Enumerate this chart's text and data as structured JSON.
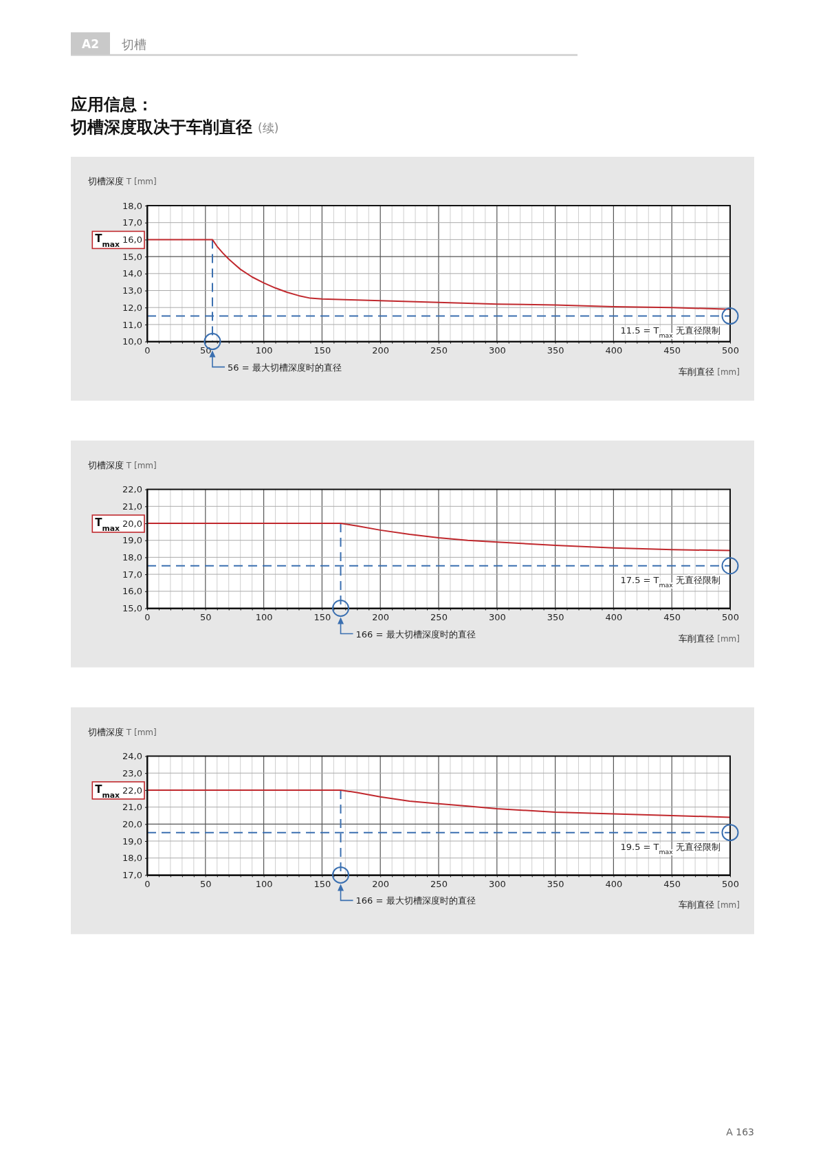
{
  "chart_data": [
    {
      "type": "line",
      "title": "应用信息：",
      "subtitle": "切槽深度取决于车削直径",
      "ylabel": "切槽深度 T [mm]",
      "xlabel": "车削直径 [mm]",
      "annotations": [
        "T$_{max}$",
        "A2",
        "切槽",
        "(续)"
      ],
      "x": [
        0,
        56,
        60,
        65,
        70,
        75,
        80,
        90,
        100,
        110,
        120,
        130,
        140,
        150,
        175,
        200,
        250,
        300,
        350,
        400,
        450,
        500
      ],
      "series": [
        {
          "color": "#c0282d",
          "values": [
            16,
            16,
            15.6,
            15.2,
            14.85,
            14.55,
            14.25,
            13.8,
            13.45,
            13.15,
            12.9,
            12.7,
            12.55,
            12.5,
            12.45,
            12.4,
            12.3,
            12.2,
            12.15,
            12.05,
            12.0,
            11.9
          ]
        }
      ],
      "xlim": [
        0,
        500
      ],
      "xticks": [
        0,
        {
          "value": 10,
          "label": null
        },
        {
          "value": 20,
          "label": null
        },
        {
          "value": 30,
          "label": null
        },
        {
          "value": 40,
          "label": null
        },
        50,
        {
          "value": 60,
          "label": null
        },
        {
          "value": 70,
          "label": null
        },
        {
          "value": 80,
          "label": null
        },
        {
          "value": 90,
          "label": null
        },
        100,
        {
          "value": 110,
          "label": null
        },
        {
          "value": 120,
          "label": null
        },
        {
          "value": 130,
          "label": null
        },
        {
          "value": 140,
          "label": null
        },
        150,
        {
          "value": 160,
          "label": null
        },
        {
          "value": 170,
          "label": null
        },
        {
          "value": 180,
          "label": null
        },
        {
          "value": 190,
          "label": null
        },
        200,
        {
          "value": 210,
          "label": null
        },
        {
          "value": 220,
          "label": null
        },
        {
          "value": 230,
          "label": null
        },
        {
          "value": 240,
          "label": null
        },
        250,
        {
          "value": 260,
          "label": null
        },
        {
          "value": 270,
          "label": null
        },
        {
          "value": 280,
          "label": null
        },
        {
          "value": 290,
          "label": null
        },
        300,
        {
          "value": 310,
          "label": null
        },
        {
          "value": 320,
          "label": null
        },
        {
          "value": 330,
          "label": null
        },
        {
          "value": 340,
          "label": null
        },
        350,
        {
          "value": 360,
          "label": null
        },
        {
          "value": 370,
          "label": null
        },
        {
          "value": 380,
          "label": null
        },
        {
          "value": 390,
          "label": null
        },
        400,
        {
          "value": 410,
          "label": null
        },
        {
          "value": 420,
          "label": null
        },
        {
          "value": 430,
          "label": null
        },
        {
          "value": 440,
          "label": null
        },
        450,
        {
          "value": 460,
          "label": null
        },
        {
          "value": 470,
          "label": null
        },
        {
          "value": 480,
          "label": null
        },
        {
          "value": 490,
          "label": null
        },
        500
      ],
      "ylim": [
        10,
        18
      ],
      "yticks": [
        {
          "value": 10,
          "label": "10,0"
        },
        {
          "value": 11,
          "label": "11,0"
        },
        {
          "value": 12,
          "label": "12,0"
        },
        {
          "value": 13,
          "label": "13,0"
        },
        {
          "value": 14,
          "label": "14,0"
        },
        {
          "value": 15,
          "label": "15,0"
        },
        {
          "value": 16,
          "label": "16,0"
        },
        {
          "value": 17,
          "label": "17,0"
        },
        {
          "value": 18,
          "label": "18,0"
        }
      ],
      "grid": true,
      "ref_lines": [
        {
          "axis": "x",
          "value": 56,
          "label": "56 = 最大切槽深度时的直径",
          "color": "#3a6fb0",
          "line_style": "dashed"
        },
        {
          "axis": "y",
          "value": 11.5,
          "label": "11.5 = T$_{max}$ 无直径限制",
          "color": "#3a6fb0",
          "line_style": "dashed"
        }
      ]
    },
    {
      "type": "line",
      "ylabel": "切槽深度 T [mm]",
      "xlabel": "车削直径 [mm]",
      "annotations": [
        "T$_{max}$"
      ],
      "x": [
        0,
        166,
        180,
        200,
        225,
        250,
        275,
        300,
        350,
        400,
        450,
        500
      ],
      "series": [
        {
          "color": "#c0282d",
          "values": [
            20,
            20,
            19.85,
            19.6,
            19.35,
            19.15,
            19.0,
            18.9,
            18.7,
            18.55,
            18.45,
            18.4
          ]
        }
      ],
      "xlim": [
        0,
        500
      ],
      "xticks": [
        0,
        {
          "value": 10,
          "label": null
        },
        {
          "value": 20,
          "label": null
        },
        {
          "value": 30,
          "label": null
        },
        {
          "value": 40,
          "label": null
        },
        50,
        {
          "value": 60,
          "label": null
        },
        {
          "value": 70,
          "label": null
        },
        {
          "value": 80,
          "label": null
        },
        {
          "value": 90,
          "label": null
        },
        100,
        {
          "value": 110,
          "label": null
        },
        {
          "value": 120,
          "label": null
        },
        {
          "value": 130,
          "label": null
        },
        {
          "value": 140,
          "label": null
        },
        150,
        {
          "value": 160,
          "label": null
        },
        {
          "value": 170,
          "label": null
        },
        {
          "value": 180,
          "label": null
        },
        {
          "value": 190,
          "label": null
        },
        200,
        {
          "value": 210,
          "label": null
        },
        {
          "value": 220,
          "label": null
        },
        {
          "value": 230,
          "label": null
        },
        {
          "value": 240,
          "label": null
        },
        250,
        {
          "value": 260,
          "label": null
        },
        {
          "value": 270,
          "label": null
        },
        {
          "value": 280,
          "label": null
        },
        {
          "value": 290,
          "label": null
        },
        300,
        {
          "value": 310,
          "label": null
        },
        {
          "value": 320,
          "label": null
        },
        {
          "value": 330,
          "label": null
        },
        {
          "value": 340,
          "label": null
        },
        350,
        {
          "value": 360,
          "label": null
        },
        {
          "value": 370,
          "label": null
        },
        {
          "value": 380,
          "label": null
        },
        {
          "value": 390,
          "label": null
        },
        400,
        {
          "value": 410,
          "label": null
        },
        {
          "value": 420,
          "label": null
        },
        {
          "value": 430,
          "label": null
        },
        {
          "value": 440,
          "label": null
        },
        450,
        {
          "value": 460,
          "label": null
        },
        {
          "value": 470,
          "label": null
        },
        {
          "value": 480,
          "label": null
        },
        {
          "value": 490,
          "label": null
        },
        500
      ],
      "ylim": [
        15,
        22
      ],
      "yticks": [
        {
          "value": 15,
          "label": "15,0"
        },
        {
          "value": 16,
          "label": "16,0"
        },
        {
          "value": 17,
          "label": "17,0"
        },
        {
          "value": 18,
          "label": "18,0"
        },
        {
          "value": 19,
          "label": "19,0"
        },
        {
          "value": 20,
          "label": "20,0"
        },
        {
          "value": 21,
          "label": "21,0"
        },
        {
          "value": 22,
          "label": "22,0"
        }
      ],
      "grid": true,
      "ref_lines": [
        {
          "axis": "x",
          "value": 166,
          "label": "166 = 最大切槽深度时的直径",
          "color": "#3a6fb0",
          "line_style": "dashed"
        },
        {
          "axis": "y",
          "value": 17.5,
          "label": "17.5 = T$_{max}$ 无直径限制",
          "color": "#3a6fb0",
          "line_style": "dashed"
        }
      ]
    },
    {
      "type": "line",
      "ylabel": "切槽深度 T [mm]",
      "xlabel": "车削直径 [mm]",
      "annotations": [
        "T$_{max}$",
        "A 163"
      ],
      "x": [
        0,
        166,
        180,
        200,
        225,
        250,
        275,
        300,
        350,
        400,
        450,
        500
      ],
      "series": [
        {
          "color": "#c0282d",
          "values": [
            22,
            22,
            21.85,
            21.6,
            21.35,
            21.2,
            21.05,
            20.9,
            20.7,
            20.6,
            20.5,
            20.4
          ]
        }
      ],
      "xlim": [
        0,
        500
      ],
      "xticks": [
        0,
        {
          "value": 10,
          "label": null
        },
        {
          "value": 20,
          "label": null
        },
        {
          "value": 30,
          "label": null
        },
        {
          "value": 40,
          "label": null
        },
        50,
        {
          "value": 60,
          "label": null
        },
        {
          "value": 70,
          "label": null
        },
        {
          "value": 80,
          "label": null
        },
        {
          "value": 90,
          "label": null
        },
        100,
        {
          "value": 110,
          "label": null
        },
        {
          "value": 120,
          "label": null
        },
        {
          "value": 130,
          "label": null
        },
        {
          "value": 140,
          "label": null
        },
        150,
        {
          "value": 160,
          "label": null
        },
        {
          "value": 170,
          "label": null
        },
        {
          "value": 180,
          "label": null
        },
        {
          "value": 190,
          "label": null
        },
        200,
        {
          "value": 210,
          "label": null
        },
        {
          "value": 220,
          "label": null
        },
        {
          "value": 230,
          "label": null
        },
        {
          "value": 240,
          "label": null
        },
        250,
        {
          "value": 260,
          "label": null
        },
        {
          "value": 270,
          "label": null
        },
        {
          "value": 280,
          "label": null
        },
        {
          "value": 290,
          "label": null
        },
        300,
        {
          "value": 310,
          "label": null
        },
        {
          "value": 320,
          "label": null
        },
        {
          "value": 330,
          "label": null
        },
        {
          "value": 340,
          "label": null
        },
        350,
        {
          "value": 360,
          "label": null
        },
        {
          "value": 370,
          "label": null
        },
        {
          "value": 380,
          "label": null
        },
        {
          "value": 390,
          "label": null
        },
        400,
        {
          "value": 410,
          "label": null
        },
        {
          "value": 420,
          "label": null
        },
        {
          "value": 430,
          "label": null
        },
        {
          "value": 440,
          "label": null
        },
        450,
        {
          "value": 460,
          "label": null
        },
        {
          "value": 470,
          "label": null
        },
        {
          "value": 480,
          "label": null
        },
        {
          "value": 490,
          "label": null
        },
        500
      ],
      "ylim": [
        17,
        24
      ],
      "yticks": [
        {
          "value": 17,
          "label": "17,0"
        },
        {
          "value": 18,
          "label": "18,0"
        },
        {
          "value": 19,
          "label": "19,0"
        },
        {
          "value": 20,
          "label": "20,0"
        },
        {
          "value": 21,
          "label": "21,0"
        },
        {
          "value": 22,
          "label": "22,0"
        },
        {
          "value": 23,
          "label": "23,0"
        },
        {
          "value": 24,
          "label": "24,0"
        }
      ],
      "grid": true,
      "ref_lines": [
        {
          "axis": "x",
          "value": 166,
          "label": "166 = 最大切槽深度时的直径",
          "color": "#3a6fb0",
          "line_style": "dashed"
        },
        {
          "axis": "y",
          "value": 19.5,
          "label": "19.5 = T$_{max}$ 无直径限制",
          "color": "#3a6fb0",
          "line_style": "dashed"
        }
      ]
    }
  ]
}
